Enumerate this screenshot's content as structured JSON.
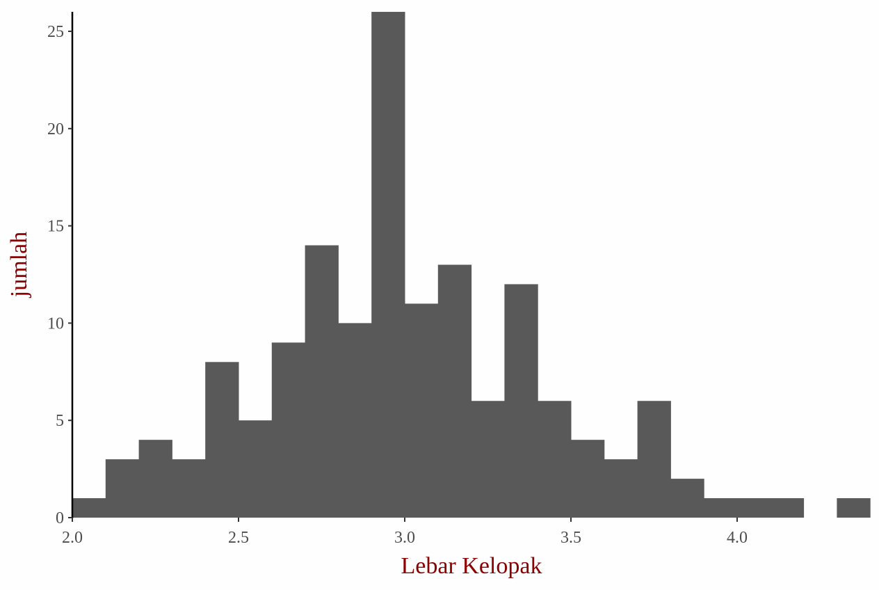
{
  "chart_data": {
    "type": "bar",
    "subtype": "histogram",
    "xlabel": "Lebar Kelopak",
    "ylabel": "jumlah",
    "bin_width": 0.1,
    "bins": [
      {
        "x0": 2.0,
        "x1": 2.1,
        "count": 1
      },
      {
        "x0": 2.1,
        "x1": 2.2,
        "count": 3
      },
      {
        "x0": 2.2,
        "x1": 2.3,
        "count": 4
      },
      {
        "x0": 2.3,
        "x1": 2.4,
        "count": 3
      },
      {
        "x0": 2.4,
        "x1": 2.5,
        "count": 8
      },
      {
        "x0": 2.5,
        "x1": 2.6,
        "count": 5
      },
      {
        "x0": 2.6,
        "x1": 2.7,
        "count": 9
      },
      {
        "x0": 2.7,
        "x1": 2.8,
        "count": 14
      },
      {
        "x0": 2.8,
        "x1": 2.9,
        "count": 10
      },
      {
        "x0": 2.9,
        "x1": 3.0,
        "count": 26
      },
      {
        "x0": 3.0,
        "x1": 3.1,
        "count": 11
      },
      {
        "x0": 3.1,
        "x1": 3.2,
        "count": 13
      },
      {
        "x0": 3.2,
        "x1": 3.3,
        "count": 6
      },
      {
        "x0": 3.3,
        "x1": 3.4,
        "count": 12
      },
      {
        "x0": 3.4,
        "x1": 3.5,
        "count": 6
      },
      {
        "x0": 3.5,
        "x1": 3.6,
        "count": 4
      },
      {
        "x0": 3.6,
        "x1": 3.7,
        "count": 3
      },
      {
        "x0": 3.7,
        "x1": 3.8,
        "count": 6
      },
      {
        "x0": 3.8,
        "x1": 3.9,
        "count": 2
      },
      {
        "x0": 3.9,
        "x1": 4.0,
        "count": 1
      },
      {
        "x0": 4.0,
        "x1": 4.1,
        "count": 1
      },
      {
        "x0": 4.1,
        "x1": 4.2,
        "count": 1
      },
      {
        "x0": 4.2,
        "x1": 4.3,
        "count": 0
      },
      {
        "x0": 4.3,
        "x1": 4.4,
        "count": 1
      }
    ],
    "xticks": [
      "2.0",
      "2.5",
      "3.0",
      "3.5",
      "4.0"
    ],
    "yticks": [
      "0",
      "5",
      "10",
      "15",
      "20",
      "25"
    ],
    "xlim": [
      2.0,
      4.4
    ],
    "ylim": [
      0,
      26
    ],
    "grid": false,
    "bar_color": "#595959",
    "title_color": "#8b0000",
    "tick_color": "#4d4d4d"
  }
}
